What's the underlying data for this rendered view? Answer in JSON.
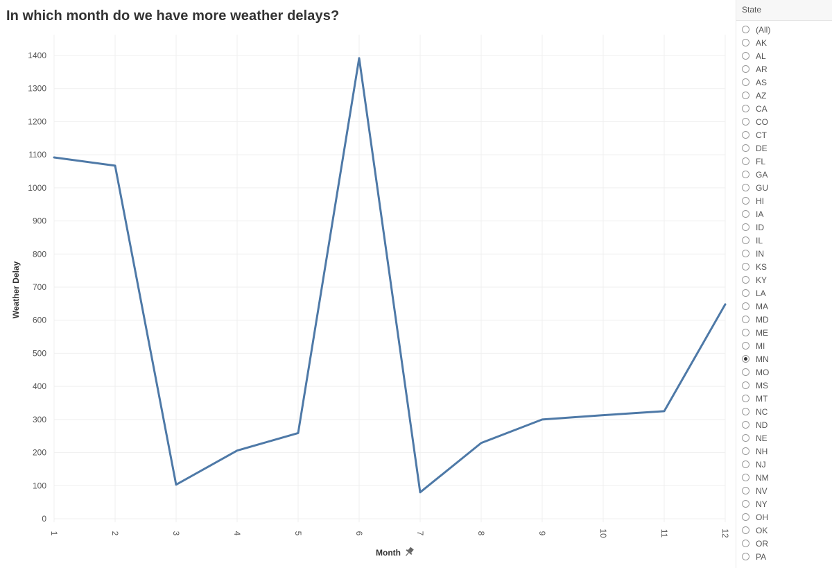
{
  "page": {
    "title": "In which month do we have more weather delays?"
  },
  "chart_data": {
    "type": "line",
    "x": [
      1,
      2,
      3,
      4,
      5,
      6,
      7,
      8,
      9,
      10,
      11,
      12
    ],
    "series": [
      {
        "values": [
          1092,
          1067,
          103,
          206,
          259,
          1392,
          80,
          229,
          300,
          313,
          325,
          648
        ]
      }
    ],
    "xlabel": "Month",
    "ylabel": "Weather Delay",
    "ylim": [
      0,
      1400
    ],
    "yticks": [
      0,
      100,
      200,
      300,
      400,
      500,
      600,
      700,
      800,
      900,
      1000,
      1100,
      1200,
      1300,
      1400
    ],
    "xticks": [
      1,
      2,
      3,
      4,
      5,
      6,
      7,
      8,
      9,
      10,
      11,
      12
    ],
    "line_color": "#4e79a7",
    "grid": true,
    "xlabel_icon": "pin-icon"
  },
  "filter": {
    "title": "State",
    "selected": "MN",
    "options": [
      "(All)",
      "AK",
      "AL",
      "AR",
      "AS",
      "AZ",
      "CA",
      "CO",
      "CT",
      "DE",
      "FL",
      "GA",
      "GU",
      "HI",
      "IA",
      "ID",
      "IL",
      "IN",
      "KS",
      "KY",
      "LA",
      "MA",
      "MD",
      "ME",
      "MI",
      "MN",
      "MO",
      "MS",
      "MT",
      "NC",
      "ND",
      "NE",
      "NH",
      "NJ",
      "NM",
      "NV",
      "NY",
      "OH",
      "OK",
      "OR",
      "PA"
    ]
  }
}
